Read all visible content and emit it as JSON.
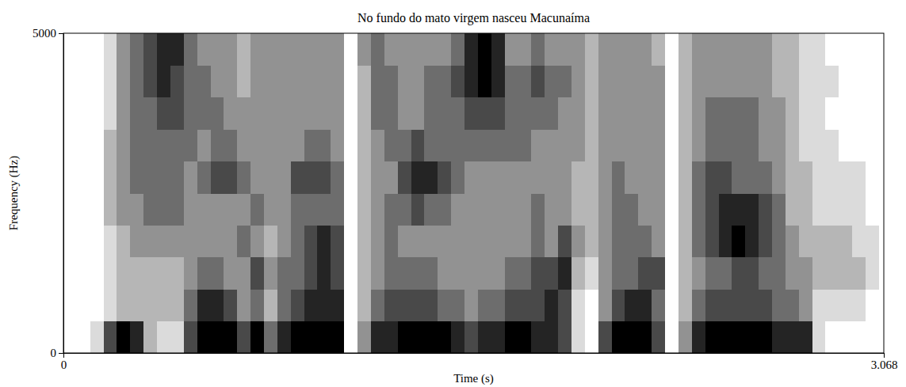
{
  "chart_data": {
    "type": "heatmap",
    "title": "No fundo do mato virgem nasceu Macunaíma",
    "x_label": "Time (s)",
    "y_label": "Frequency (Hz)",
    "color": "#000000",
    "grid": false,
    "xlim": [
      0,
      3.068
    ],
    "ylim": [
      0,
      5000
    ],
    "xticks": [
      0,
      3.068
    ],
    "yticks": [
      0,
      5000
    ],
    "x": [
      0,
      0.05,
      0.1,
      0.15,
      0.2,
      0.25,
      0.3,
      0.35,
      0.4,
      0.45,
      0.5,
      0.55,
      0.6,
      0.65,
      0.7,
      0.75,
      0.8,
      0.85,
      0.9,
      0.95,
      1.0,
      1.05,
      1.1,
      1.15,
      1.2,
      1.25,
      1.3,
      1.35,
      1.4,
      1.45,
      1.5,
      1.55,
      1.6,
      1.65,
      1.7,
      1.75,
      1.8,
      1.85,
      1.9,
      1.95,
      2.0,
      2.05,
      2.1,
      2.15,
      2.2,
      2.25,
      2.3,
      2.35,
      2.4,
      2.45,
      2.5,
      2.55,
      2.6,
      2.65,
      2.7,
      2.75,
      2.8,
      2.85,
      2.9,
      2.95,
      3.0,
      3.05
    ],
    "y": [
      0,
      500,
      1000,
      1500,
      2000,
      2500,
      3000,
      3500,
      4000,
      4500
    ],
    "cells": [
      [
        0,
        0,
        0,
        0,
        0,
        0,
        0,
        0,
        0,
        0
      ],
      [
        0,
        0,
        0,
        0,
        0,
        0,
        0,
        0,
        0,
        0
      ],
      [
        1,
        0,
        0,
        0,
        0,
        0,
        0,
        0,
        0,
        0
      ],
      [
        5,
        1,
        1,
        1,
        2,
        2,
        2,
        1,
        1,
        1
      ],
      [
        7,
        2,
        2,
        2,
        3,
        3,
        3,
        3,
        3,
        3
      ],
      [
        6,
        2,
        2,
        3,
        3,
        4,
        4,
        4,
        4,
        4
      ],
      [
        2,
        2,
        2,
        3,
        4,
        4,
        4,
        4,
        5,
        5
      ],
      [
        1,
        2,
        2,
        3,
        4,
        4,
        4,
        5,
        6,
        6
      ],
      [
        1,
        2,
        2,
        3,
        4,
        4,
        4,
        5,
        5,
        6
      ],
      [
        5,
        4,
        3,
        3,
        3,
        3,
        4,
        4,
        4,
        4
      ],
      [
        7,
        6,
        4,
        3,
        3,
        4,
        3,
        4,
        4,
        3
      ],
      [
        7,
        6,
        4,
        3,
        3,
        5,
        4,
        4,
        3,
        3
      ],
      [
        7,
        5,
        3,
        3,
        3,
        5,
        4,
        3,
        3,
        3
      ],
      [
        5,
        3,
        3,
        4,
        3,
        4,
        3,
        3,
        2,
        2
      ],
      [
        7,
        4,
        5,
        3,
        4,
        3,
        3,
        3,
        3,
        3
      ],
      [
        4,
        2,
        3,
        2,
        3,
        3,
        3,
        3,
        3,
        3
      ],
      [
        6,
        4,
        4,
        3,
        3,
        3,
        3,
        3,
        3,
        3
      ],
      [
        7,
        5,
        4,
        4,
        4,
        5,
        3,
        3,
        3,
        3
      ],
      [
        7,
        6,
        5,
        5,
        4,
        5,
        4,
        3,
        3,
        3
      ],
      [
        7,
        6,
        6,
        6,
        4,
        5,
        4,
        3,
        3,
        3
      ],
      [
        7,
        6,
        5,
        5,
        4,
        4,
        3,
        3,
        3,
        3
      ],
      [
        0,
        0,
        0,
        0,
        0,
        0,
        0,
        0,
        0,
        0
      ],
      [
        3,
        2,
        2,
        2,
        2,
        2,
        2,
        2,
        2,
        3
      ],
      [
        6,
        4,
        3,
        3,
        3,
        3,
        3,
        4,
        4,
        4
      ],
      [
        6,
        5,
        4,
        4,
        4,
        3,
        4,
        4,
        4,
        3
      ],
      [
        7,
        5,
        4,
        3,
        4,
        5,
        4,
        3,
        3,
        3
      ],
      [
        7,
        5,
        4,
        3,
        5,
        6,
        5,
        3,
        3,
        3
      ],
      [
        7,
        5,
        4,
        3,
        4,
        6,
        4,
        4,
        4,
        3
      ],
      [
        7,
        4,
        3,
        3,
        4,
        5,
        4,
        4,
        4,
        3
      ],
      [
        6,
        4,
        3,
        3,
        3,
        4,
        4,
        4,
        5,
        4
      ],
      [
        5,
        3,
        3,
        3,
        3,
        3,
        4,
        5,
        6,
        6
      ],
      [
        6,
        4,
        3,
        3,
        3,
        3,
        4,
        5,
        7,
        7
      ],
      [
        6,
        4,
        3,
        3,
        3,
        3,
        4,
        5,
        6,
        6
      ],
      [
        7,
        5,
        4,
        3,
        3,
        3,
        4,
        4,
        4,
        3
      ],
      [
        7,
        5,
        4,
        3,
        3,
        3,
        4,
        4,
        4,
        3
      ],
      [
        6,
        5,
        5,
        4,
        4,
        3,
        3,
        4,
        5,
        4
      ],
      [
        6,
        6,
        5,
        3,
        3,
        3,
        3,
        4,
        4,
        3
      ],
      [
        5,
        5,
        6,
        5,
        3,
        3,
        3,
        3,
        4,
        3
      ],
      [
        1,
        1,
        2,
        3,
        2,
        2,
        3,
        3,
        3,
        3
      ],
      [
        0,
        0,
        1,
        2,
        2,
        2,
        2,
        2,
        2,
        2
      ],
      [
        5,
        3,
        3,
        3,
        3,
        3,
        3,
        3,
        3,
        3
      ],
      [
        7,
        5,
        4,
        4,
        4,
        4,
        3,
        3,
        3,
        3
      ],
      [
        7,
        6,
        4,
        4,
        4,
        3,
        3,
        3,
        3,
        3
      ],
      [
        7,
        6,
        5,
        4,
        3,
        3,
        3,
        3,
        3,
        3
      ],
      [
        5,
        4,
        5,
        3,
        3,
        3,
        3,
        3,
        3,
        2
      ],
      [
        0,
        0,
        0,
        0,
        0,
        0,
        0,
        0,
        0,
        0
      ],
      [
        3,
        2,
        2,
        2,
        2,
        2,
        2,
        2,
        2,
        2
      ],
      [
        6,
        4,
        3,
        4,
        4,
        4,
        3,
        3,
        3,
        3
      ],
      [
        7,
        5,
        4,
        5,
        5,
        5,
        4,
        4,
        3,
        3
      ],
      [
        7,
        5,
        4,
        6,
        6,
        5,
        4,
        4,
        3,
        3
      ],
      [
        7,
        5,
        5,
        7,
        6,
        4,
        4,
        4,
        3,
        3
      ],
      [
        7,
        5,
        5,
        6,
        6,
        4,
        4,
        4,
        3,
        3
      ],
      [
        7,
        5,
        4,
        5,
        5,
        4,
        3,
        3,
        3,
        3
      ],
      [
        6,
        4,
        4,
        4,
        4,
        3,
        3,
        3,
        2,
        2
      ],
      [
        6,
        4,
        3,
        3,
        2,
        2,
        2,
        2,
        2,
        2
      ],
      [
        6,
        3,
        3,
        2,
        2,
        2,
        1,
        1,
        1,
        1
      ],
      [
        1,
        1,
        2,
        2,
        1,
        1,
        1,
        1,
        1,
        1
      ],
      [
        0,
        1,
        2,
        2,
        1,
        1,
        1,
        0,
        1,
        0
      ],
      [
        0,
        1,
        2,
        2,
        1,
        1,
        0,
        0,
        0,
        0
      ],
      [
        0,
        1,
        2,
        1,
        1,
        1,
        0,
        0,
        0,
        0
      ],
      [
        0,
        0,
        1,
        1,
        0,
        0,
        0,
        0,
        0,
        0
      ],
      [
        0,
        0,
        0,
        0,
        0,
        0,
        0,
        0,
        0,
        0
      ]
    ]
  }
}
